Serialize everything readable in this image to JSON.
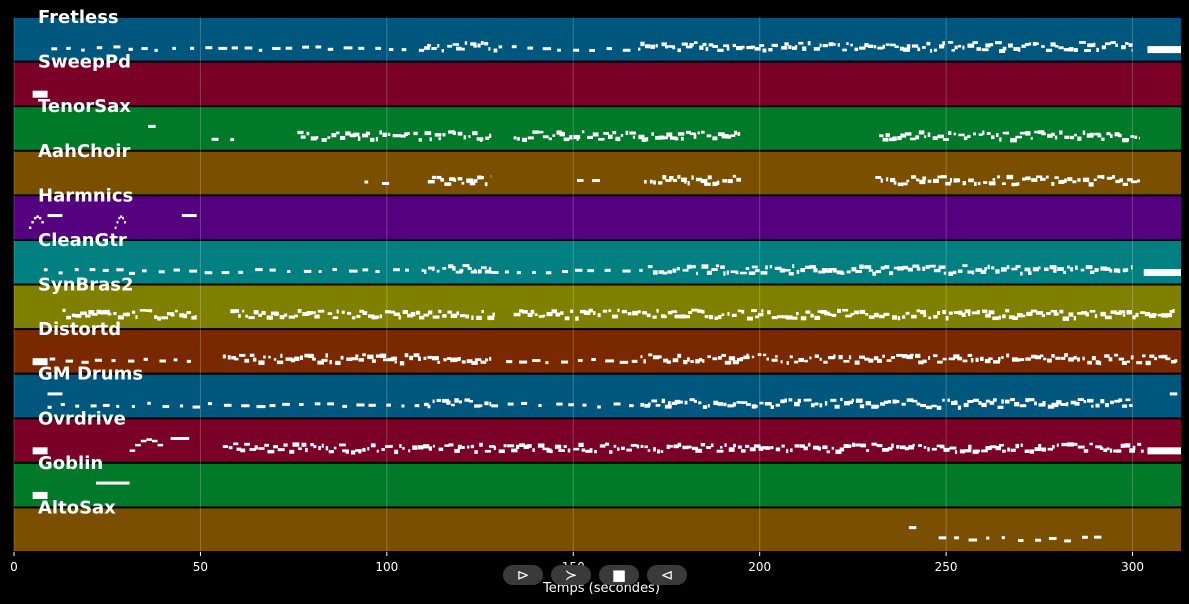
{
  "chart_data": {
    "type": "piano-roll",
    "xlabel": "Temps (secondes)",
    "xlim": [
      0,
      313
    ],
    "xticks": [
      0,
      50,
      100,
      150,
      200,
      250,
      300
    ],
    "grid": true,
    "tracks": [
      {
        "name": "Fretless",
        "color": "#00577e",
        "segments": [
          [
            10,
            14,
            "sparse"
          ],
          [
            14,
            110,
            "dashes"
          ],
          [
            110,
            130,
            "dense"
          ],
          [
            130,
            168,
            "dashes"
          ],
          [
            168,
            300,
            "dense"
          ],
          [
            304,
            313,
            "block"
          ]
        ]
      },
      {
        "name": "SweepPd",
        "color": "#7a0028",
        "segments": [
          [
            5,
            9,
            "block"
          ]
        ]
      },
      {
        "name": "TenorSax",
        "color": "#007a28",
        "segments": [
          [
            36,
            38,
            "short"
          ],
          [
            53,
            55,
            "sparse"
          ],
          [
            58,
            60,
            "sparse"
          ],
          [
            76,
            128,
            "dense"
          ],
          [
            134,
            195,
            "dense"
          ],
          [
            232,
            302,
            "dense"
          ]
        ]
      },
      {
        "name": "AahChoir",
        "color": "#7a5000",
        "segments": [
          [
            94,
            101,
            "dashes"
          ],
          [
            111,
            128,
            "dense"
          ],
          [
            151,
            159,
            "dashes"
          ],
          [
            169,
            195,
            "dense"
          ],
          [
            231,
            302,
            "dense"
          ]
        ]
      },
      {
        "name": "Harmnics",
        "color": "#55007e",
        "segments": [
          [
            4,
            8,
            "slope"
          ],
          [
            9,
            13,
            "short"
          ],
          [
            27,
            30,
            "slope"
          ],
          [
            45,
            49,
            "short"
          ]
        ]
      },
      {
        "name": "CleanGtr",
        "color": "#008080",
        "segments": [
          [
            8,
            110,
            "dashes"
          ],
          [
            110,
            128,
            "dense"
          ],
          [
            128,
            170,
            "dashes"
          ],
          [
            170,
            300,
            "dense"
          ],
          [
            303,
            313,
            "block"
          ]
        ]
      },
      {
        "name": "SynBras2",
        "color": "#808000",
        "segments": [
          [
            13,
            49,
            "dense"
          ],
          [
            58,
            129,
            "dense"
          ],
          [
            134,
            312,
            "dense"
          ]
        ]
      },
      {
        "name": "Distortd",
        "color": "#7a2800",
        "segments": [
          [
            5,
            9,
            "block"
          ],
          [
            5,
            50,
            "dashes"
          ],
          [
            56,
            128,
            "dense"
          ],
          [
            132,
            168,
            "dashes"
          ],
          [
            168,
            312,
            "dense"
          ]
        ]
      },
      {
        "name": "GM Drums",
        "color": "#00577e",
        "segments": [
          [
            9,
            13,
            "short"
          ],
          [
            9,
            110,
            "dashes"
          ],
          [
            110,
            128,
            "dense"
          ],
          [
            128,
            168,
            "dashes"
          ],
          [
            168,
            300,
            "dense"
          ],
          [
            310,
            312,
            "short"
          ]
        ]
      },
      {
        "name": "Ovrdrive",
        "color": "#7a0028",
        "segments": [
          [
            5,
            9,
            "block"
          ],
          [
            31,
            40,
            "slope"
          ],
          [
            42,
            47,
            "short"
          ],
          [
            56,
            303,
            "dense"
          ],
          [
            304,
            313,
            "block"
          ]
        ]
      },
      {
        "name": "Goblin",
        "color": "#007a28",
        "segments": [
          [
            5,
            9,
            "block"
          ],
          [
            22,
            31,
            "short"
          ]
        ]
      },
      {
        "name": "AltoSax",
        "color": "#7a5000",
        "segments": [
          [
            240,
            242,
            "short"
          ],
          [
            248,
            293,
            "dashes"
          ]
        ]
      }
    ]
  },
  "controls": {
    "rewind_symbol": "⊳",
    "play_symbol": "≻",
    "stop_symbol": "■",
    "back_symbol": "⊲"
  }
}
